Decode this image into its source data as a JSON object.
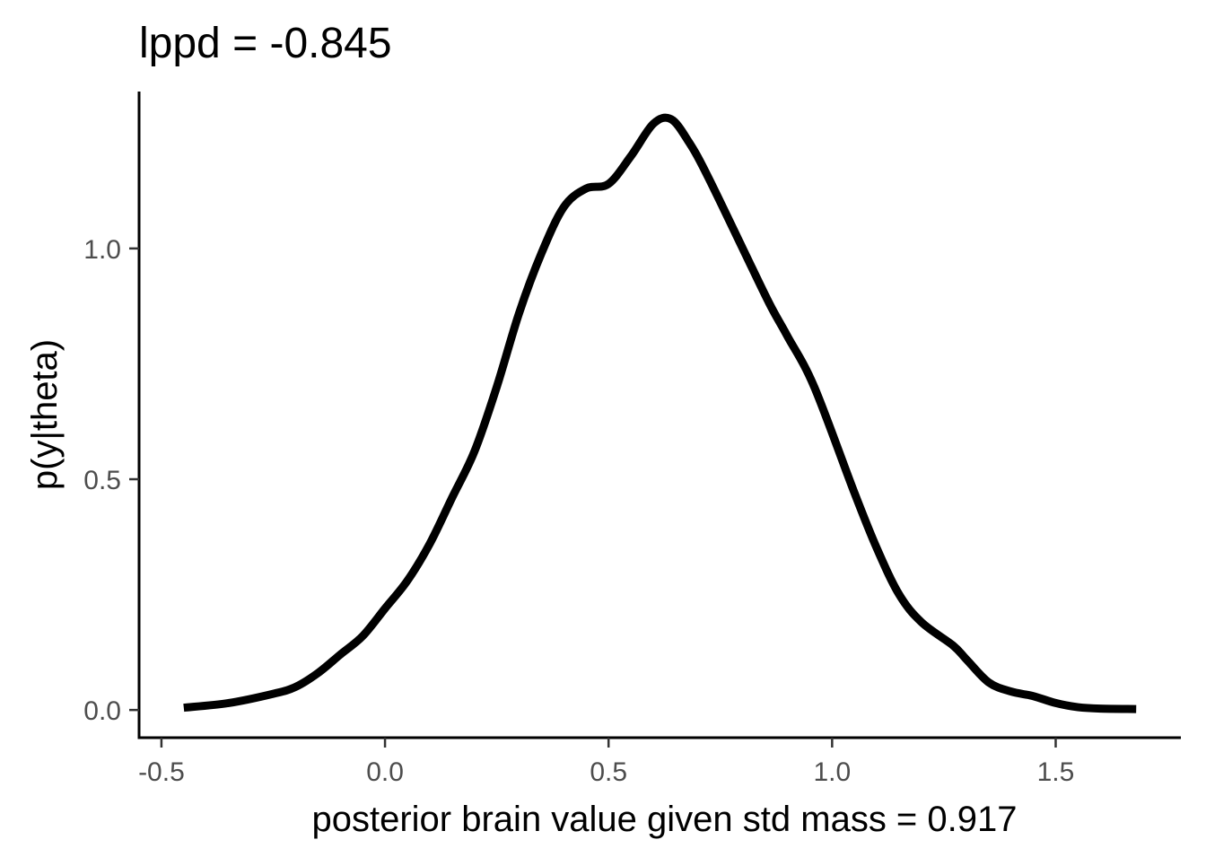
{
  "chart_data": {
    "type": "line",
    "title": "lppd = -0.845",
    "xlabel": "posterior brain value given std mass = 0.917",
    "ylabel": "p(y|theta)",
    "xlim": [
      -0.55,
      1.78
    ],
    "ylim": [
      -0.06,
      1.34
    ],
    "x_ticks": [
      -0.5,
      0.0,
      0.5,
      1.0,
      1.5
    ],
    "x_tick_labels": [
      "-0.5",
      "0.0",
      "0.5",
      "1.0",
      "1.5"
    ],
    "y_ticks": [
      0.0,
      0.5,
      1.0
    ],
    "y_tick_labels": [
      "0.0",
      "0.5",
      "1.0"
    ],
    "grid": false,
    "line_color": "#000000",
    "series": [
      {
        "x": [
          -0.45,
          -0.35,
          -0.25,
          -0.2,
          -0.15,
          -0.1,
          -0.05,
          0.0,
          0.05,
          0.1,
          0.15,
          0.2,
          0.25,
          0.3,
          0.35,
          0.4,
          0.45,
          0.5,
          0.55,
          0.6,
          0.64,
          0.68,
          0.72,
          0.8,
          0.86,
          0.9,
          0.96,
          1.05,
          1.1,
          1.15,
          1.2,
          1.27,
          1.3,
          1.35,
          1.4,
          1.45,
          1.5,
          1.55,
          1.6,
          1.68
        ],
        "y": [
          0.005,
          0.015,
          0.035,
          0.05,
          0.08,
          0.12,
          0.16,
          0.22,
          0.28,
          0.36,
          0.46,
          0.56,
          0.7,
          0.86,
          0.99,
          1.09,
          1.13,
          1.14,
          1.2,
          1.27,
          1.28,
          1.23,
          1.16,
          1.0,
          0.88,
          0.81,
          0.7,
          0.47,
          0.35,
          0.25,
          0.19,
          0.14,
          0.11,
          0.06,
          0.04,
          0.03,
          0.015,
          0.006,
          0.003,
          0.002
        ]
      }
    ]
  }
}
